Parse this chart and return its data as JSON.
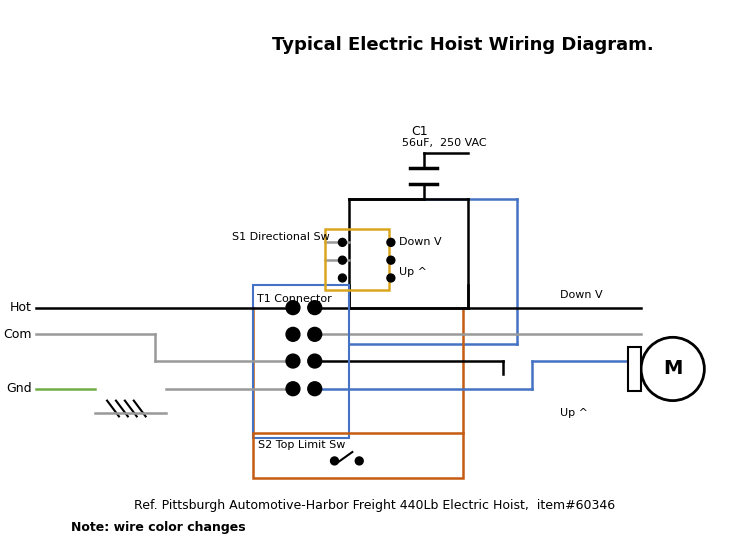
{
  "title": "Typical Electric Hoist Wiring Diagram.",
  "title_fontsize": 13,
  "ref_text": "Ref. Pittsburgh Automotive-Harbor Freight 440Lb Electric Hoist,  item#60346",
  "note_text": "Note: wire color changes",
  "background_color": "#ffffff",
  "colors": {
    "black": "#000000",
    "gray": "#999999",
    "blue": "#4472C4",
    "orange": "#C55A11",
    "yellow_sw": "#DAA520",
    "green": "#70AD47",
    "white": "#ffffff",
    "darkgray": "#555555"
  },
  "labels": {
    "hot": "Hot",
    "com": "Com",
    "gnd": "Gnd",
    "s1": "S1 Directional Sw",
    "s2": "S2 Top Limit Sw",
    "t1": "T1 Connector",
    "down_v1": "Down V",
    "up_v1": "Up ^",
    "down_v2": "Down V",
    "up_v2": "Up ^",
    "c1_label": "C1",
    "c1_spec": "56uF,  250 VAC",
    "motor": "M"
  }
}
